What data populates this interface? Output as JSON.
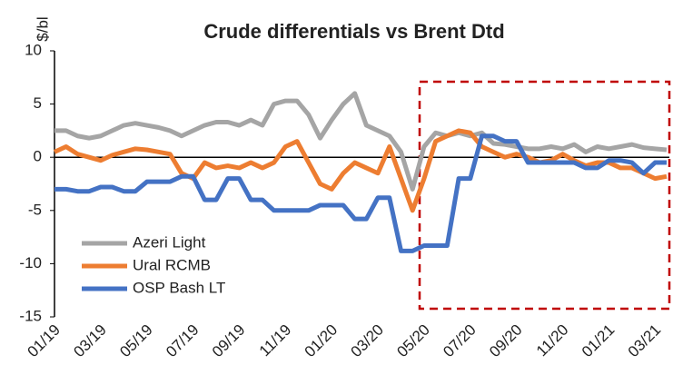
{
  "chart_data": {
    "type": "line",
    "title": "Crude differentials vs Brent Dtd",
    "y_label": "$/bl",
    "categories": [
      "01/19",
      null,
      null,
      null,
      "03/19",
      null,
      null,
      null,
      "05/19",
      null,
      null,
      null,
      "07/19",
      null,
      null,
      null,
      "09/19",
      null,
      null,
      null,
      "11/19",
      null,
      null,
      null,
      "01/20",
      null,
      null,
      null,
      "03/20",
      null,
      null,
      null,
      "05/20",
      null,
      null,
      null,
      "07/20",
      null,
      null,
      null,
      "09/20",
      null,
      null,
      null,
      "11/20",
      null,
      null,
      null,
      "01/21",
      null,
      null,
      null,
      "03/21",
      null
    ],
    "series": [
      {
        "name": "Azeri Light",
        "color": "#a5a5a5",
        "values": [
          2.5,
          2.5,
          2.0,
          1.8,
          2.0,
          2.5,
          3.0,
          3.2,
          3.0,
          2.8,
          2.5,
          2.0,
          2.5,
          3.0,
          3.3,
          3.3,
          3.0,
          3.5,
          3.0,
          5.0,
          5.3,
          5.3,
          4.0,
          1.8,
          3.5,
          5.0,
          6.0,
          3.0,
          2.5,
          2.0,
          0.5,
          -3.0,
          1.0,
          2.3,
          2.0,
          2.3,
          2.0,
          2.3,
          1.3,
          1.2,
          1.0,
          0.8,
          0.8,
          1.0,
          0.8,
          1.2,
          0.5,
          1.0,
          0.8,
          1.0,
          1.2,
          0.9,
          0.8,
          0.7
        ]
      },
      {
        "name": "Ural RCMB",
        "color": "#ed7d31",
        "values": [
          0.5,
          1.0,
          0.3,
          0.0,
          -0.3,
          0.2,
          0.5,
          0.8,
          0.7,
          0.5,
          0.3,
          -1.5,
          -2.0,
          -0.5,
          -1.0,
          -0.8,
          -1.0,
          -0.5,
          -1.0,
          -0.5,
          1.0,
          1.5,
          -0.5,
          -2.5,
          -3.0,
          -1.5,
          -0.5,
          -1.0,
          -1.5,
          1.0,
          -2.0,
          -5.0,
          -2.0,
          1.5,
          2.0,
          2.5,
          2.3,
          1.0,
          0.5,
          0.0,
          0.3,
          0.0,
          -0.5,
          -0.3,
          0.3,
          -0.3,
          -0.8,
          -0.5,
          -0.5,
          -1.0,
          -1.0,
          -1.5,
          -2.0,
          -1.8
        ]
      },
      {
        "name": "OSP Bash LT",
        "color": "#4472c4",
        "values": [
          -3.0,
          -3.0,
          -3.2,
          -3.2,
          -2.8,
          -2.8,
          -3.2,
          -3.2,
          -2.3,
          -2.3,
          -2.3,
          -1.8,
          -1.8,
          -4.0,
          -4.0,
          -2.0,
          -2.0,
          -4.0,
          -4.0,
          -5.0,
          -5.0,
          -5.0,
          -5.0,
          -4.5,
          -4.5,
          -4.5,
          -5.8,
          -5.8,
          -3.8,
          -3.8,
          -8.8,
          -8.8,
          -8.3,
          -8.3,
          -8.3,
          -2.0,
          -2.0,
          2.0,
          2.0,
          1.5,
          1.5,
          -0.5,
          -0.5,
          -0.5,
          -0.5,
          -0.5,
          -1.0,
          -1.0,
          -0.3,
          -0.3,
          -0.5,
          -1.5,
          -0.5,
          -0.5
        ]
      }
    ],
    "ylim": [
      -15,
      10
    ],
    "yticks": [
      -15,
      -10,
      -5,
      0,
      5,
      10
    ],
    "legend": "lower left"
  }
}
